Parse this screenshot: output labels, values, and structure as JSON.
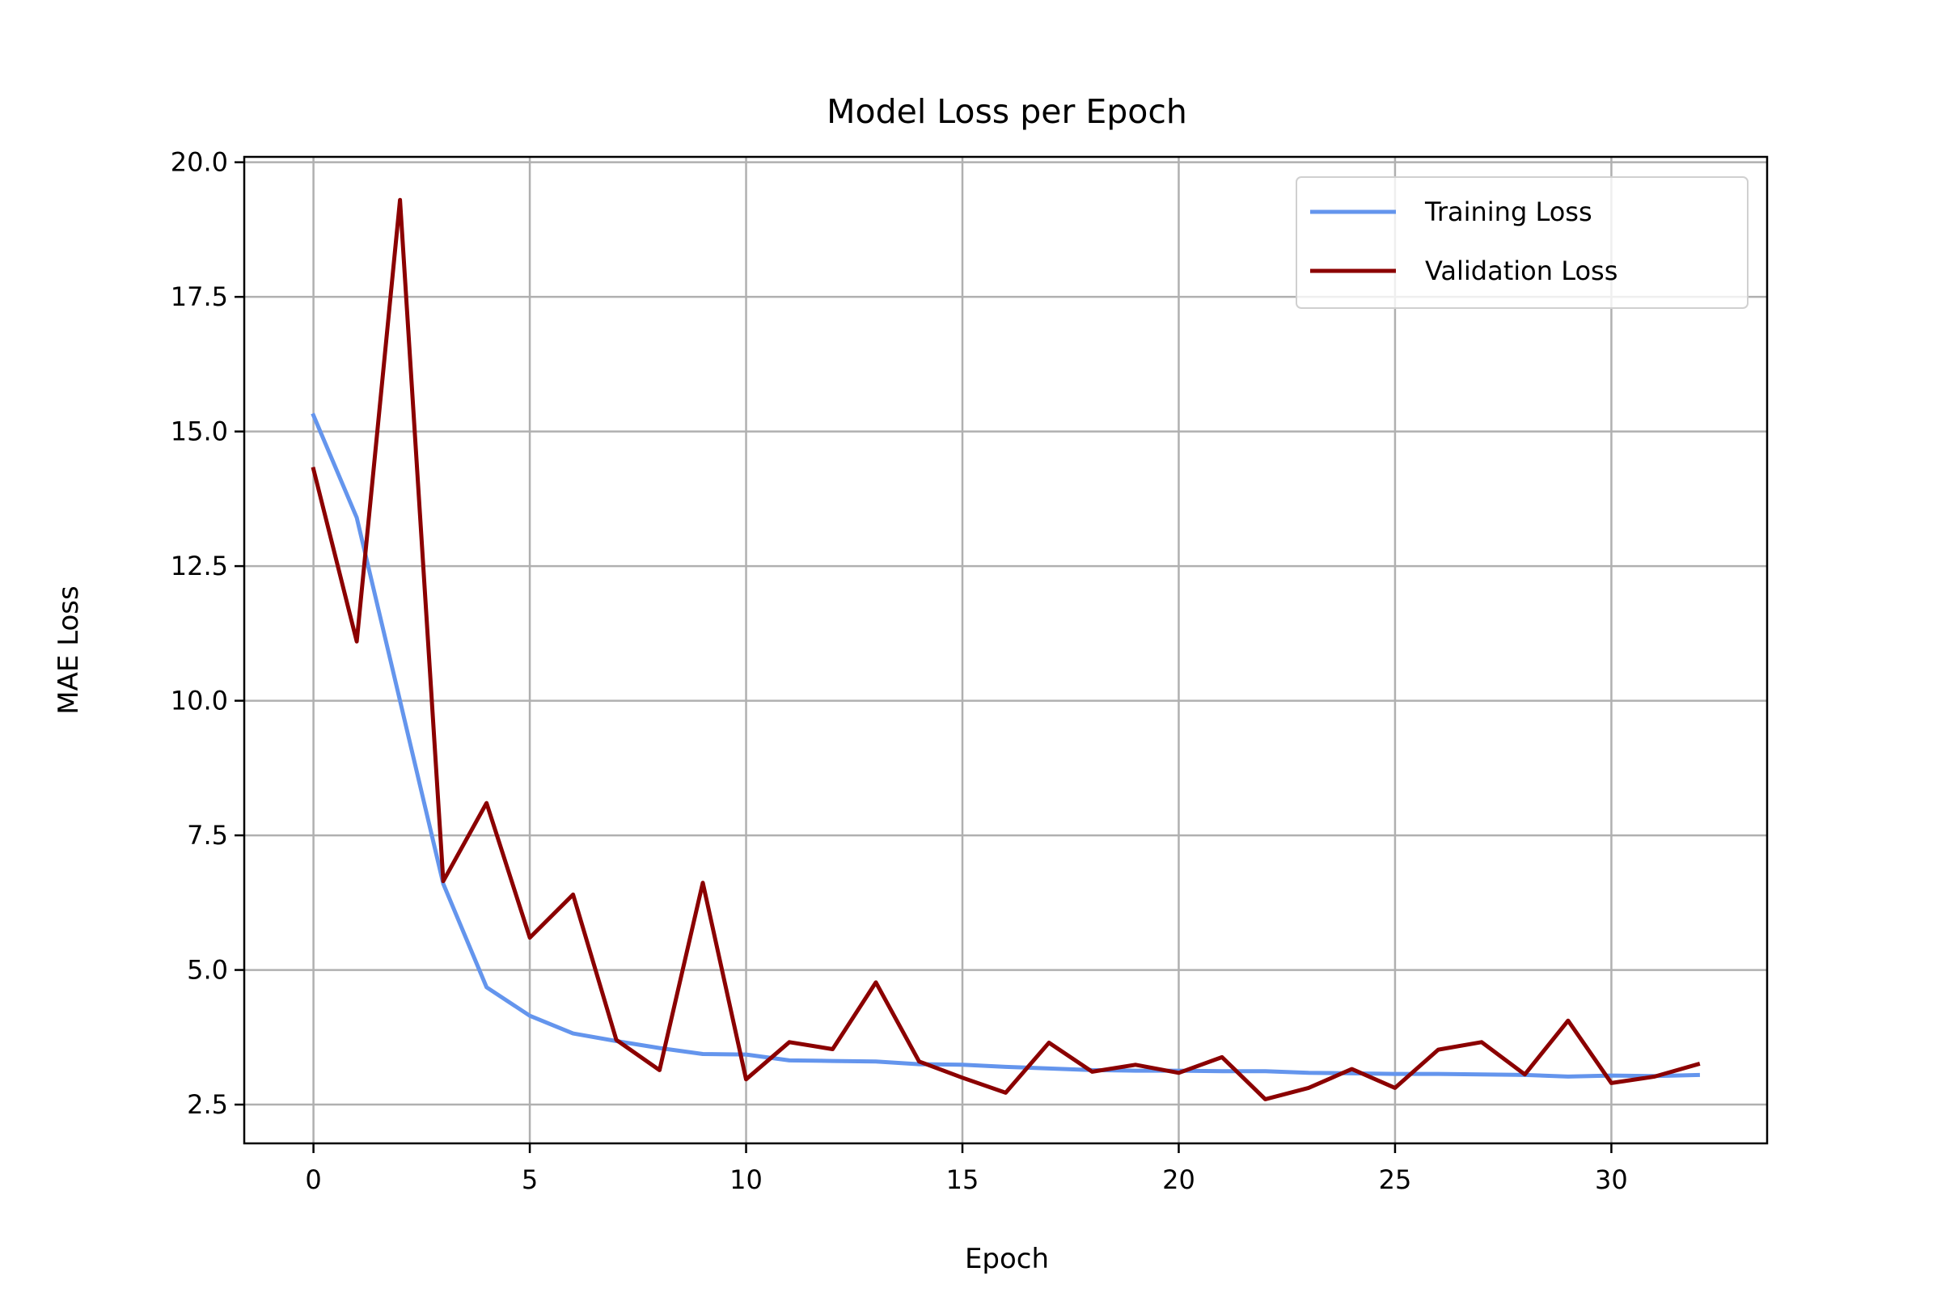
{
  "chart_data": {
    "type": "line",
    "title": "Model Loss per Epoch",
    "xlabel": "Epoch",
    "ylabel": "MAE Loss",
    "xlim": [
      -1.6,
      33.6
    ],
    "ylim": [
      1.78,
      20.1
    ],
    "xticks": [
      0,
      5,
      10,
      15,
      20,
      25,
      30
    ],
    "yticks": [
      2.5,
      5.0,
      7.5,
      10.0,
      12.5,
      15.0,
      17.5,
      20.0
    ],
    "xtick_labels": [
      "0",
      "5",
      "10",
      "15",
      "20",
      "25",
      "30"
    ],
    "ytick_labels": [
      "2.5",
      "5.0",
      "7.5",
      "10.0",
      "12.5",
      "15.0",
      "17.5",
      "20.0"
    ],
    "grid": true,
    "legend_position": "top-right",
    "x": [
      0,
      1,
      2,
      3,
      4,
      5,
      6,
      7,
      8,
      9,
      10,
      11,
      12,
      13,
      14,
      15,
      16,
      17,
      18,
      19,
      20,
      21,
      22,
      23,
      24,
      25,
      26,
      27,
      28,
      29,
      30,
      31,
      32
    ],
    "series": [
      {
        "name": "Training Loss",
        "color": "#6495ED",
        "values": [
          15.3,
          13.4,
          10.0,
          6.6,
          4.68,
          4.15,
          3.82,
          3.68,
          3.55,
          3.44,
          3.43,
          3.32,
          3.31,
          3.3,
          3.25,
          3.24,
          3.2,
          3.17,
          3.14,
          3.13,
          3.13,
          3.12,
          3.12,
          3.09,
          3.08,
          3.07,
          3.07,
          3.06,
          3.05,
          3.02,
          3.04,
          3.03,
          3.05
        ]
      },
      {
        "name": "Validation Loss",
        "color": "#8B0000",
        "values": [
          14.3,
          11.1,
          19.3,
          6.65,
          8.1,
          5.6,
          6.4,
          3.7,
          3.14,
          6.62,
          2.97,
          3.66,
          3.53,
          4.77,
          3.3,
          3.0,
          2.72,
          3.65,
          3.11,
          3.24,
          3.09,
          3.38,
          2.6,
          2.81,
          3.16,
          2.81,
          3.52,
          3.66,
          3.06,
          4.06,
          2.9,
          3.02,
          3.25
        ]
      }
    ]
  }
}
